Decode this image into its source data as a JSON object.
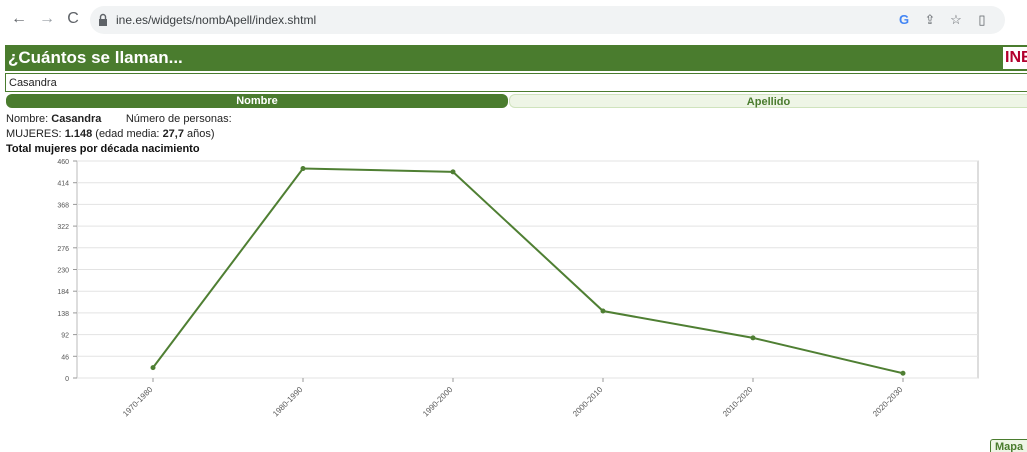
{
  "browser": {
    "url": "ine.es/widgets/nombApell/index.shtml"
  },
  "widget": {
    "title": "¿Cuántos se llaman...",
    "logo_text": "INE",
    "search": {
      "value": "Casandra"
    },
    "tabs": [
      {
        "label": "Nombre",
        "active": true
      },
      {
        "label": "Apellido",
        "active": false
      }
    ],
    "info": {
      "name_label": "Nombre:",
      "name_value": "Casandra",
      "persons_label": "Número de personas:",
      "women_label": "MUJERES:",
      "women_count": "1.148",
      "age_prefix": "(edad media:",
      "age_value": "27,7",
      "age_suffix": "años)"
    },
    "mapa_label": "Mapa"
  },
  "colors": {
    "brand_green": "#4a7c2e",
    "line_green": "#4f7f33",
    "ine_red": "#b3002d"
  },
  "chart_data": {
    "type": "line",
    "title": "Total mujeres por década nacimiento",
    "categories": [
      "1970-1980",
      "1980-1990",
      "1990-2000",
      "2000-2010",
      "2010-2020",
      "2020-2030"
    ],
    "series": [
      {
        "values": [
          22,
          444,
          437,
          142,
          85,
          10
        ]
      }
    ],
    "yticks": [
      "0",
      "46",
      "92",
      "138",
      "184",
      "230",
      "276",
      "322",
      "368",
      "414",
      "460"
    ],
    "ylim": [
      0,
      460
    ],
    "grid": true,
    "legend": false
  }
}
